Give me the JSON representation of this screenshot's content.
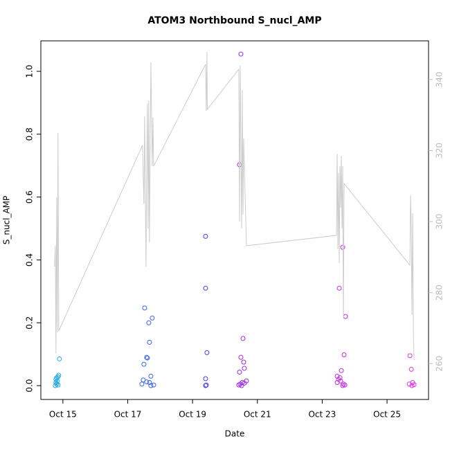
{
  "chart_data": {
    "type": "scatter",
    "title": "ATOM3 Northbound S_nucl_AMP",
    "xlabel": "Date",
    "ylabel": "S_nucl_AMP",
    "xlim": [
      14.32,
      26.28
    ],
    "xticks": [
      {
        "value": 15,
        "label": "Oct 15"
      },
      {
        "value": 17,
        "label": "Oct 17"
      },
      {
        "value": 19,
        "label": "Oct 19"
      },
      {
        "value": 21,
        "label": "Oct 21"
      },
      {
        "value": 23,
        "label": "Oct 23"
      },
      {
        "value": 25,
        "label": "Oct 25"
      }
    ],
    "ylim": [
      -0.044,
      1.097
    ],
    "yticks": [
      {
        "value": 0,
        "label": "0.0"
      },
      0.2,
      0.4,
      0.6,
      0.8,
      {
        "value": 1,
        "label": "1.0"
      }
    ],
    "y2lim": [
      249.9,
      350.9
    ],
    "y2ticks": [
      260,
      280,
      300,
      320,
      340
    ],
    "series": [
      {
        "color": "#1aa6e6",
        "x": [
          14.893,
          14.872,
          14.85,
          14.808,
          14.786,
          14.829,
          14.786,
          14.808,
          14.85,
          14.765
        ],
        "values": [
          0.085,
          0.033,
          0.028,
          0.025,
          0.02,
          0.015,
          0.01,
          0.005,
          0.002,
          0.0
        ]
      },
      {
        "color": "#3a64ee",
        "x": [
          17.521,
          17.756,
          17.65,
          17.671,
          17.585,
          17.607,
          17.5,
          17.714,
          17.479,
          17.585,
          17.671,
          17.436,
          17.799,
          17.714
        ],
        "values": [
          0.247,
          0.215,
          0.2,
          0.138,
          0.09,
          0.088,
          0.068,
          0.03,
          0.018,
          0.012,
          0.01,
          0.005,
          0.002,
          0.0
        ]
      },
      {
        "color": "#4a3ee8",
        "x": [
          19.402,
          19.402,
          19.444,
          19.402,
          19.423,
          19.402
        ],
        "values": [
          0.475,
          0.31,
          0.105,
          0.022,
          0.002,
          0.0
        ]
      },
      {
        "color": "#9c27e3",
        "x": [
          20.491,
          20.449,
          20.556,
          20.491,
          20.577,
          20.598,
          20.449,
          20.662,
          20.534,
          20.598,
          20.47,
          20.427,
          20.513
        ],
        "values": [
          1.055,
          0.703,
          0.15,
          0.09,
          0.075,
          0.055,
          0.043,
          0.015,
          0.01,
          0.008,
          0.005,
          0.002,
          0.0
        ]
      },
      {
        "color": "#c52ae6",
        "x": [
          23.632,
          23.526,
          23.718,
          23.675,
          23.59,
          23.462,
          23.547,
          23.504,
          23.568,
          23.462,
          23.654,
          23.697,
          23.632
        ],
        "values": [
          0.44,
          0.31,
          0.22,
          0.098,
          0.048,
          0.03,
          0.025,
          0.02,
          0.015,
          0.01,
          0.005,
          0.002,
          0.0
        ]
      },
      {
        "color": "#df2ee6",
        "x": [
          25.705,
          25.748,
          25.791,
          25.684,
          25.833,
          25.769
        ],
        "values": [
          0.095,
          0.052,
          0.01,
          0.005,
          0.003,
          0.0
        ]
      },
      {
        "type": "line",
        "axis": "y2",
        "color": "#cccccc",
        "x": [
          14.744,
          14.765,
          14.786,
          14.808,
          14.829,
          14.85,
          14.872,
          17.457,
          17.5,
          17.521,
          17.564,
          17.585,
          17.607,
          17.628,
          17.65,
          17.671,
          17.714,
          17.756,
          17.778,
          17.799,
          19.402,
          19.423,
          19.444,
          19.455,
          20.427,
          20.449,
          20.47,
          20.513,
          20.534,
          20.556,
          20.577,
          20.62,
          20.662,
          23.44,
          23.462,
          23.483,
          23.504,
          23.526,
          23.547,
          23.568,
          23.59,
          23.611,
          23.632,
          23.654,
          23.675,
          25.705,
          25.726,
          25.748,
          25.769,
          25.791,
          25.812,
          25.833
        ],
        "values": [
          287.3,
          293.2,
          262.9,
          306.8,
          268.8,
          325.0,
          269.2,
          321.5,
          304.9,
          329.7,
          287.3,
          315.6,
          333.2,
          298.0,
          334.1,
          294.1,
          344.9,
          315.6,
          329.3,
          315.6,
          344.3,
          331.2,
          347.8,
          331.6,
          342.9,
          300.0,
          343.9,
          298.0,
          337.1,
          302.0,
          323.4,
          307.8,
          293.2,
          296.1,
          319.1,
          292.2,
          313.7,
          288.3,
          315.6,
          303.9,
          318.5,
          298.0,
          315.6,
          272.7,
          310.7,
          287.7,
          307.4,
          298.0,
          273.7,
          302.3,
          268.8,
          261.0
        ]
      }
    ]
  }
}
